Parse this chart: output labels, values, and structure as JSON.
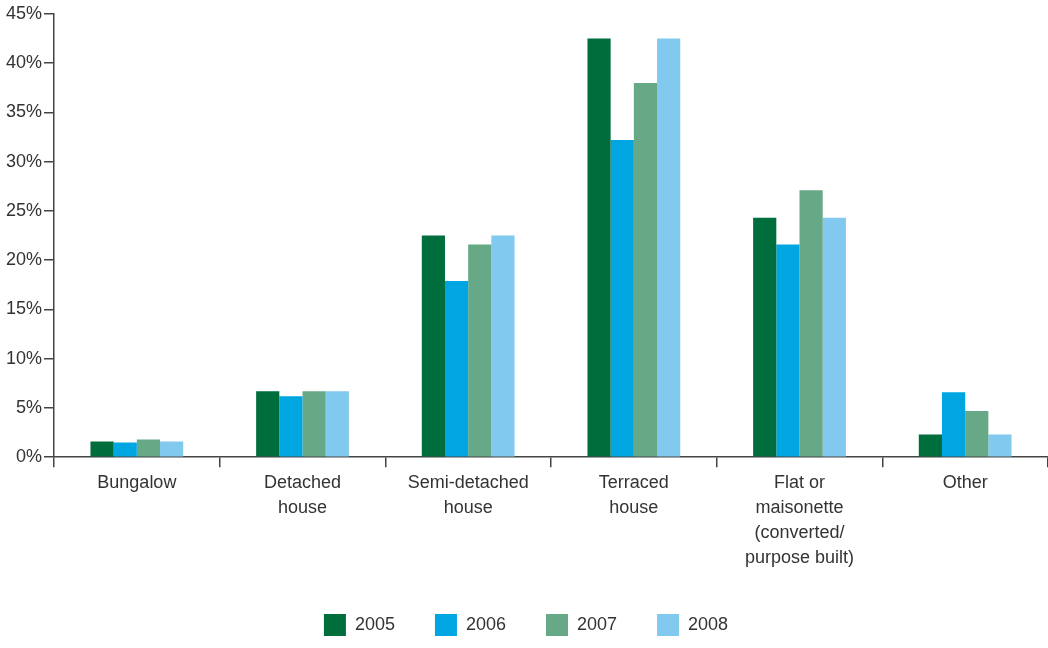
{
  "chart_data": {
    "type": "bar",
    "categories": [
      "Bungalow",
      "Detached house",
      "Semi-detached house",
      "Terraced house",
      "Flat or maisonette (converted/ purpose built)",
      "Other"
    ],
    "series": [
      {
        "name": "2005",
        "color": "#006e3c",
        "values": [
          1.6,
          6.7,
          22.5,
          42.5,
          24.3,
          2.3
        ]
      },
      {
        "name": "2006",
        "color": "#00a6e2",
        "values": [
          1.5,
          6.2,
          17.9,
          32.2,
          21.6,
          6.6
        ]
      },
      {
        "name": "2007",
        "color": "#67a886",
        "values": [
          1.8,
          6.7,
          21.6,
          38.0,
          27.1,
          4.7
        ]
      },
      {
        "name": "2008",
        "color": "#81c9ef",
        "values": [
          1.6,
          6.7,
          22.5,
          42.5,
          24.3,
          2.3
        ]
      }
    ],
    "ylim": [
      0,
      45
    ],
    "yticks": [
      {
        "value": 0,
        "label": "0%"
      },
      {
        "value": 5,
        "label": "5%"
      },
      {
        "value": 10,
        "label": "10%"
      },
      {
        "value": 15,
        "label": "15%"
      },
      {
        "value": 20,
        "label": "20%"
      },
      {
        "value": 25,
        "label": "25%"
      },
      {
        "value": 30,
        "label": "30%"
      },
      {
        "value": 35,
        "label": "35%"
      },
      {
        "value": 40,
        "label": "40%"
      },
      {
        "value": 45,
        "label": "45%"
      }
    ],
    "grid": false,
    "legend": "bottom"
  }
}
